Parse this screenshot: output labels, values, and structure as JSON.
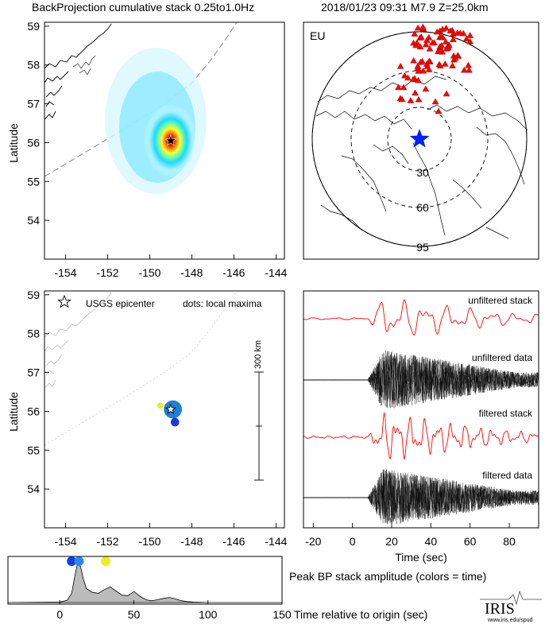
{
  "header": {
    "left_title": "BackProjection cumulative stack 0.25to1.0Hz",
    "right_title": "2018/01/23 09:31  M7.9  Z=25.0km"
  },
  "map_top": {
    "ylabel": "Latitude",
    "xticks": [
      "-154",
      "-152",
      "-150",
      "-148",
      "-146",
      "-144"
    ],
    "yticks": [
      "59",
      "58",
      "57",
      "56",
      "55",
      "54"
    ]
  },
  "globe": {
    "region_label": "EU",
    "ring_labels": [
      "30",
      "60",
      "95"
    ],
    "station_color": "#ff0000",
    "epicenter_color": "#0020ff"
  },
  "map_bottom": {
    "ylabel": "Latitude",
    "legend_star": "USGS epicenter",
    "legend_dots": "dots: local maxima",
    "scale_label": "300 km",
    "xticks": [
      "-154",
      "-152",
      "-150",
      "-148",
      "-146",
      "-144"
    ],
    "yticks": [
      "59",
      "58",
      "57",
      "56",
      "55",
      "54"
    ]
  },
  "traces": {
    "labels": [
      "unfiltered stack",
      "unfiltered data",
      "filtered stack",
      "filtered data"
    ],
    "xticks": [
      "-20",
      "0",
      "20",
      "40",
      "60",
      "80"
    ],
    "xlabel": "Time (sec)"
  },
  "timeline": {
    "xticks": [
      "0",
      "50",
      "100",
      "150"
    ],
    "caption": "Peak BP stack amplitude (colors = time)",
    "xlabel": "Time relative to origin (sec)"
  },
  "logo": {
    "text": "IRIS",
    "url": "www.iris.edu/spud"
  },
  "chart_data": [
    {
      "type": "heatmap",
      "xlim": [
        -155,
        -143.6
      ],
      "ylim": [
        53,
        59.1
      ],
      "epicenter": {
        "lon": -149.0,
        "lat": 56.05
      },
      "peak": {
        "lon": -149.0,
        "lat": 56.05
      }
    },
    {
      "type": "scatter",
      "xlim": [
        -155,
        -143.6
      ],
      "ylim": [
        53,
        59.1
      ],
      "epicenter": {
        "lon": -149.0,
        "lat": 56.05
      },
      "points": [
        {
          "lon": -148.9,
          "lat": 56.05,
          "color": "#1e7fd8",
          "size": 3
        },
        {
          "lon": -148.8,
          "lat": 55.72,
          "color": "#1e3ad0",
          "size": 1.4
        },
        {
          "lon": -149.5,
          "lat": 56.15,
          "color": "#e0f020",
          "size": 1
        }
      ],
      "scale_km": 300
    },
    {
      "type": "line",
      "xlim": [
        -25,
        95
      ],
      "series": [
        {
          "name": "unfiltered stack",
          "color": "#ff0000"
        },
        {
          "name": "unfiltered data",
          "color": "#000000"
        },
        {
          "name": "filtered stack",
          "color": "#ff0000"
        },
        {
          "name": "filtered data",
          "color": "#000000"
        }
      ]
    },
    {
      "type": "area",
      "xlim": [
        -35,
        150
      ],
      "x": [
        -35,
        0,
        5,
        8,
        10,
        12,
        14,
        16,
        18,
        22,
        26,
        30,
        34,
        38,
        42,
        46,
        50,
        54,
        58,
        62,
        66,
        70,
        74,
        78,
        82,
        86,
        90,
        100,
        150
      ],
      "y": [
        0,
        0.01,
        0.05,
        0.2,
        0.55,
        0.85,
        0.78,
        0.5,
        0.3,
        0.22,
        0.2,
        0.28,
        0.34,
        0.25,
        0.16,
        0.15,
        0.24,
        0.14,
        0.06,
        0.04,
        0.06,
        0.09,
        0.11,
        0.08,
        0.04,
        0.02,
        0.01,
        0,
        0
      ],
      "peaks": [
        {
          "t": 8,
          "color": "#1040e0"
        },
        {
          "t": 13,
          "color": "#2a8ae8"
        },
        {
          "t": 31,
          "color": "#e8f020"
        }
      ]
    }
  ]
}
